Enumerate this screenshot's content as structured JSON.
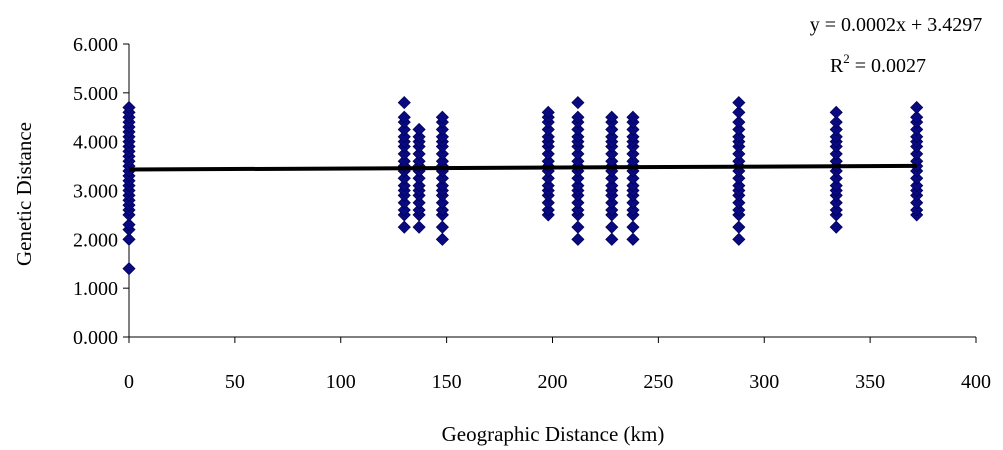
{
  "chart_data": {
    "type": "scatter",
    "title": "",
    "xlabel": "Geographic Distance (km)",
    "ylabel": "Genetic Distance",
    "xlim": [
      0,
      400
    ],
    "ylim": [
      0,
      6
    ],
    "x_ticks": [
      0,
      50,
      100,
      150,
      200,
      250,
      300,
      350,
      400
    ],
    "x_tick_labels": [
      "0",
      "50",
      "100",
      "150",
      "200",
      "250",
      "300",
      "350",
      "400"
    ],
    "y_ticks": [
      0,
      1,
      2,
      3,
      4,
      5,
      6
    ],
    "y_tick_labels": [
      "0.000",
      "1.000",
      "2.000",
      "3.000",
      "4.000",
      "5.000",
      "6.000"
    ],
    "grid": false,
    "legend": "none",
    "marker_color": "#0a0a80",
    "trendline": {
      "slope": 0.0002,
      "intercept": 3.4297,
      "equation_label": "y = 0.0002x + 3.4297",
      "r2_prefix": "R",
      "r2_exponent": "2",
      "r2_value": " = 0.0027"
    },
    "points": [
      {
        "x": 0,
        "y": [
          1.4,
          2.0,
          2.2,
          2.3,
          2.5,
          2.6,
          2.7,
          2.8,
          2.9,
          3.0,
          3.1,
          3.2,
          3.3,
          3.4,
          3.5,
          3.6,
          3.7,
          3.8,
          3.9,
          4.0,
          4.1,
          4.2,
          4.3,
          4.4,
          4.5,
          4.6,
          4.7
        ]
      },
      {
        "x": 130,
        "y": [
          2.25,
          2.5,
          2.6,
          2.75,
          2.9,
          3.0,
          3.1,
          3.25,
          3.4,
          3.5,
          3.6,
          3.75,
          3.9,
          4.0,
          4.1,
          4.25,
          4.4,
          4.5,
          4.8
        ]
      },
      {
        "x": 137,
        "y": [
          2.25,
          2.5,
          2.6,
          2.75,
          2.9,
          3.0,
          3.1,
          3.25,
          3.4,
          3.5,
          3.6,
          3.75,
          3.9,
          4.0,
          4.1,
          4.25
        ]
      },
      {
        "x": 148,
        "y": [
          2.0,
          2.25,
          2.5,
          2.6,
          2.75,
          2.9,
          3.0,
          3.1,
          3.25,
          3.4,
          3.5,
          3.6,
          3.75,
          3.9,
          4.0,
          4.1,
          4.25,
          4.4,
          4.5
        ]
      },
      {
        "x": 198,
        "y": [
          2.5,
          2.6,
          2.75,
          2.9,
          3.0,
          3.1,
          3.25,
          3.4,
          3.5,
          3.6,
          3.75,
          3.9,
          4.0,
          4.1,
          4.25,
          4.4,
          4.5,
          4.6
        ]
      },
      {
        "x": 212,
        "y": [
          2.0,
          2.25,
          2.5,
          2.6,
          2.75,
          2.9,
          3.0,
          3.1,
          3.25,
          3.4,
          3.5,
          3.6,
          3.75,
          3.9,
          4.0,
          4.1,
          4.25,
          4.4,
          4.5,
          4.8
        ]
      },
      {
        "x": 228,
        "y": [
          2.0,
          2.25,
          2.5,
          2.6,
          2.75,
          2.9,
          3.0,
          3.1,
          3.25,
          3.4,
          3.5,
          3.6,
          3.75,
          3.9,
          4.0,
          4.1,
          4.25,
          4.4,
          4.5
        ]
      },
      {
        "x": 238,
        "y": [
          2.0,
          2.25,
          2.5,
          2.6,
          2.75,
          2.9,
          3.0,
          3.1,
          3.25,
          3.4,
          3.5,
          3.6,
          3.75,
          3.9,
          4.0,
          4.1,
          4.25,
          4.4,
          4.5
        ]
      },
      {
        "x": 288,
        "y": [
          2.0,
          2.25,
          2.5,
          2.6,
          2.75,
          2.9,
          3.0,
          3.1,
          3.25,
          3.4,
          3.5,
          3.6,
          3.75,
          3.9,
          4.0,
          4.1,
          4.25,
          4.4,
          4.6,
          4.8
        ]
      },
      {
        "x": 334,
        "y": [
          2.25,
          2.5,
          2.6,
          2.75,
          2.9,
          3.0,
          3.1,
          3.25,
          3.4,
          3.5,
          3.6,
          3.75,
          3.9,
          4.0,
          4.1,
          4.25,
          4.4,
          4.6
        ]
      },
      {
        "x": 372,
        "y": [
          2.5,
          2.6,
          2.75,
          2.9,
          3.0,
          3.1,
          3.25,
          3.4,
          3.5,
          3.6,
          3.75,
          3.9,
          4.0,
          4.1,
          4.25,
          4.4,
          4.5,
          4.7
        ]
      }
    ]
  }
}
